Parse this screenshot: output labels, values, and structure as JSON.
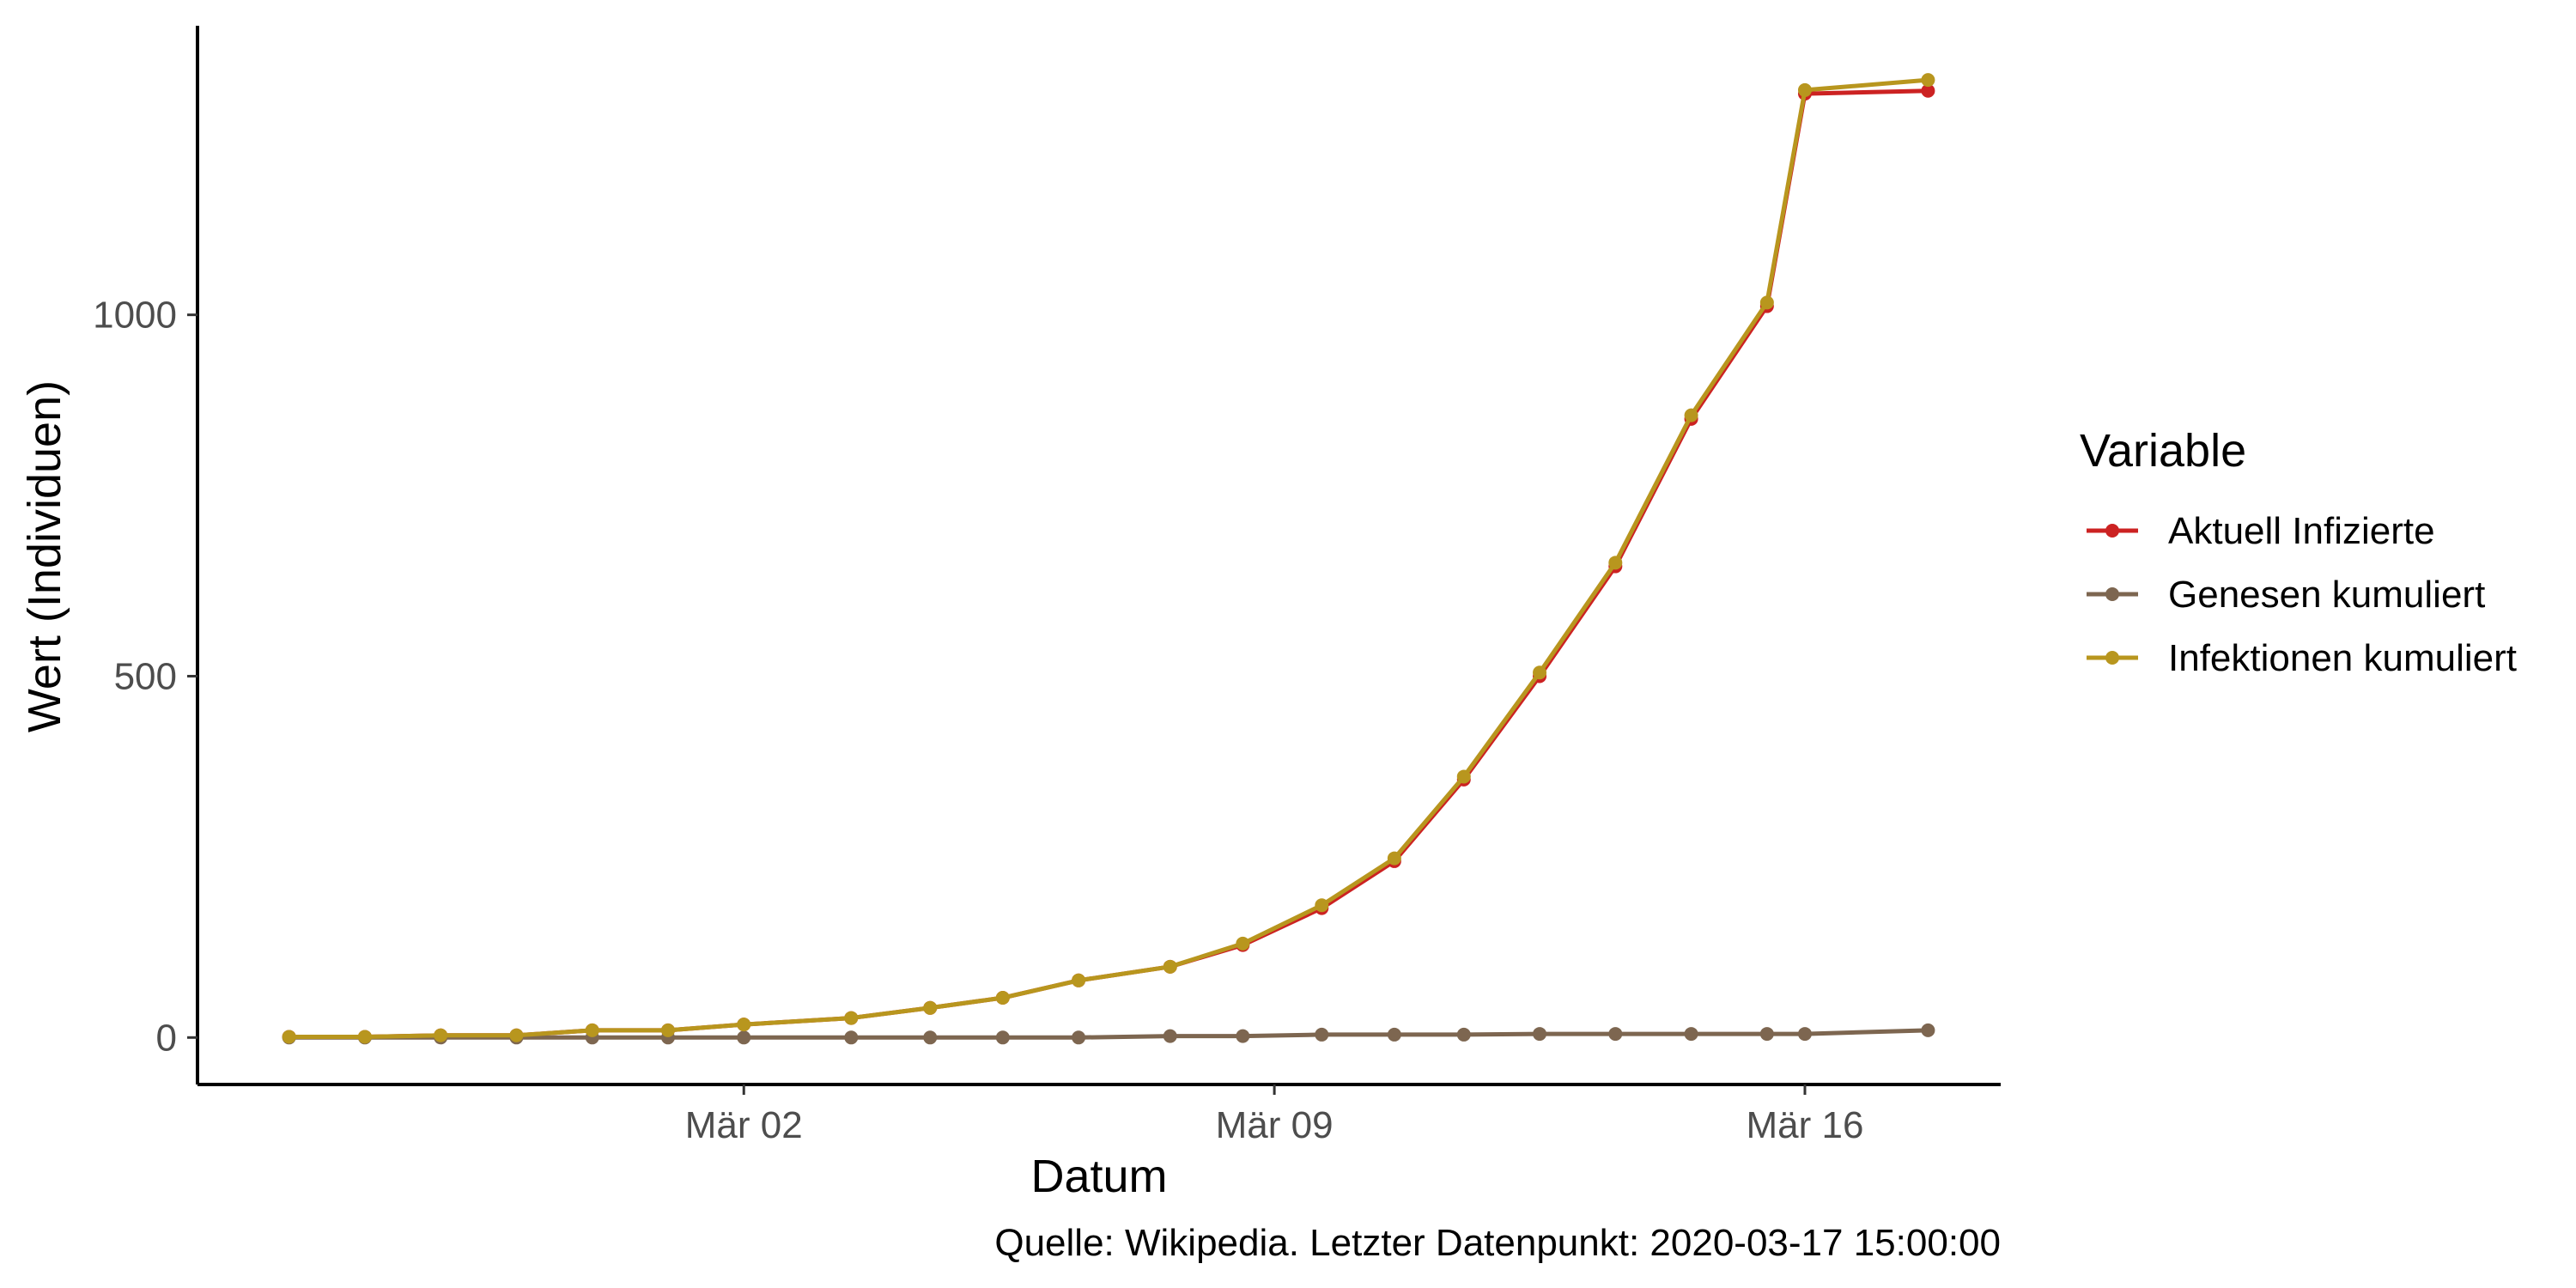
{
  "chart_data": {
    "type": "line",
    "xlabel": "Datum",
    "ylabel": "Wert (Individuen)",
    "caption": "Quelle: Wikipedia. Letzter Datenpunkt: 2020-03-17 15:00:00",
    "x_ticks": [
      {
        "date": "2020-03-02",
        "label": "Mär 02"
      },
      {
        "date": "2020-03-09",
        "label": "Mär 09"
      },
      {
        "date": "2020-03-16",
        "label": "Mär 16"
      }
    ],
    "y_ticks": [
      0,
      500,
      1000
    ],
    "xlim": [
      "2020-02-23T19:00",
      "2020-03-18T14:00"
    ],
    "ylim": [
      -65,
      1400
    ],
    "legend": {
      "title": "Variable",
      "position": "right"
    },
    "grid": false,
    "x": [
      "2020-02-25",
      "2020-02-26",
      "2020-02-27",
      "2020-02-28",
      "2020-02-29",
      "2020-03-01",
      "2020-03-02",
      "2020-03-03T10:00",
      "2020-03-04T11:00",
      "2020-03-05T10:00",
      "2020-03-06T10:00",
      "2020-03-07T15:00",
      "2020-03-08T14:00",
      "2020-03-09T15:00",
      "2020-03-10T14:00",
      "2020-03-11T12:00",
      "2020-03-12T12:00",
      "2020-03-13T12:00",
      "2020-03-14T12:00",
      "2020-03-15T12:00",
      "2020-03-16",
      "2020-03-17T15:00"
    ],
    "series": [
      {
        "name": "Aktuell Infizierte",
        "color": "#cc2222",
        "values": [
          1,
          1,
          3,
          3,
          10,
          10,
          18,
          27,
          41,
          55,
          79,
          98,
          128,
          179,
          244,
          357,
          500,
          652,
          856,
          1012,
          1306,
          1310
        ]
      },
      {
        "name": "Genesen kumuliert",
        "color": "#7d6650",
        "values": [
          0,
          0,
          0,
          0,
          0,
          0,
          0,
          0,
          0,
          0,
          0,
          2,
          2,
          4,
          4,
          4,
          5,
          5,
          5,
          5,
          5,
          10
        ]
      },
      {
        "name": "Infektionen kumuliert",
        "color": "#b8961e",
        "values": [
          1,
          1,
          3,
          3,
          10,
          10,
          18,
          27,
          41,
          55,
          79,
          98,
          130,
          183,
          248,
          361,
          505,
          657,
          861,
          1017,
          1311,
          1325
        ]
      }
    ]
  }
}
